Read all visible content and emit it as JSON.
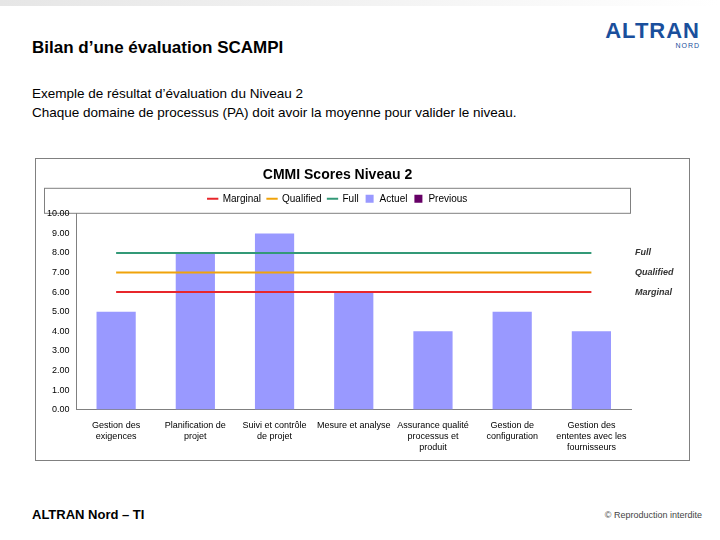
{
  "slide": {
    "title": "Bilan d’une évaluation SCAMPI",
    "logo": "ALTRAN",
    "logo_sub": "NORD",
    "text": [
      "Exemple de résultat d’évaluation du Niveau 2",
      "Chaque domaine de processus (PA) doit avoir la moyenne pour valider le niveau."
    ],
    "footer_left": "ALTRAN Nord – TI",
    "footer_right": "© Reproduction interdite"
  },
  "chart_data": {
    "type": "bar",
    "title": "CMMI Scores Niveau 2",
    "categories": [
      "Gestion des exigences",
      "Planification de projet",
      "Suivi et contrôle de projet",
      "Mesure et analyse",
      "Assurance qualité processus et produit",
      "Gestion de configuration",
      "Gestion des ententes avec les fournisseurs"
    ],
    "series": [
      {
        "name": "Actuel",
        "type": "bar",
        "color": "#9999ff",
        "values": [
          5,
          8,
          9,
          6,
          4,
          5,
          4
        ]
      },
      {
        "name": "Previous",
        "type": "bar",
        "color": "#660066",
        "values": [
          null,
          null,
          null,
          null,
          null,
          null,
          null
        ]
      },
      {
        "name": "Marginal",
        "type": "line",
        "color": "#e8262b",
        "values": [
          6,
          6,
          6,
          6,
          6,
          6,
          6
        ]
      },
      {
        "name": "Qualified",
        "type": "line",
        "color": "#f0a30a",
        "values": [
          7,
          7,
          7,
          7,
          7,
          7,
          7
        ]
      },
      {
        "name": "Full",
        "type": "line",
        "color": "#339977",
        "values": [
          8,
          8,
          8,
          8,
          8,
          8,
          8
        ]
      }
    ],
    "ylim": [
      0,
      10
    ],
    "yticks": [
      {
        "value": 0,
        "label": "0.00"
      },
      {
        "value": 1,
        "label": "1.00"
      },
      {
        "value": 2,
        "label": "2.00"
      },
      {
        "value": 3,
        "label": "3.00"
      },
      {
        "value": 4,
        "label": "4.00"
      },
      {
        "value": 5,
        "label": "5.00"
      },
      {
        "value": 6,
        "label": "6.00"
      },
      {
        "value": 7,
        "label": "7.00"
      },
      {
        "value": 8,
        "label": "8.00"
      },
      {
        "value": 9,
        "label": "9.00"
      },
      {
        "value": 10,
        "label": "10.00"
      }
    ],
    "grid": false,
    "legend": "top"
  }
}
